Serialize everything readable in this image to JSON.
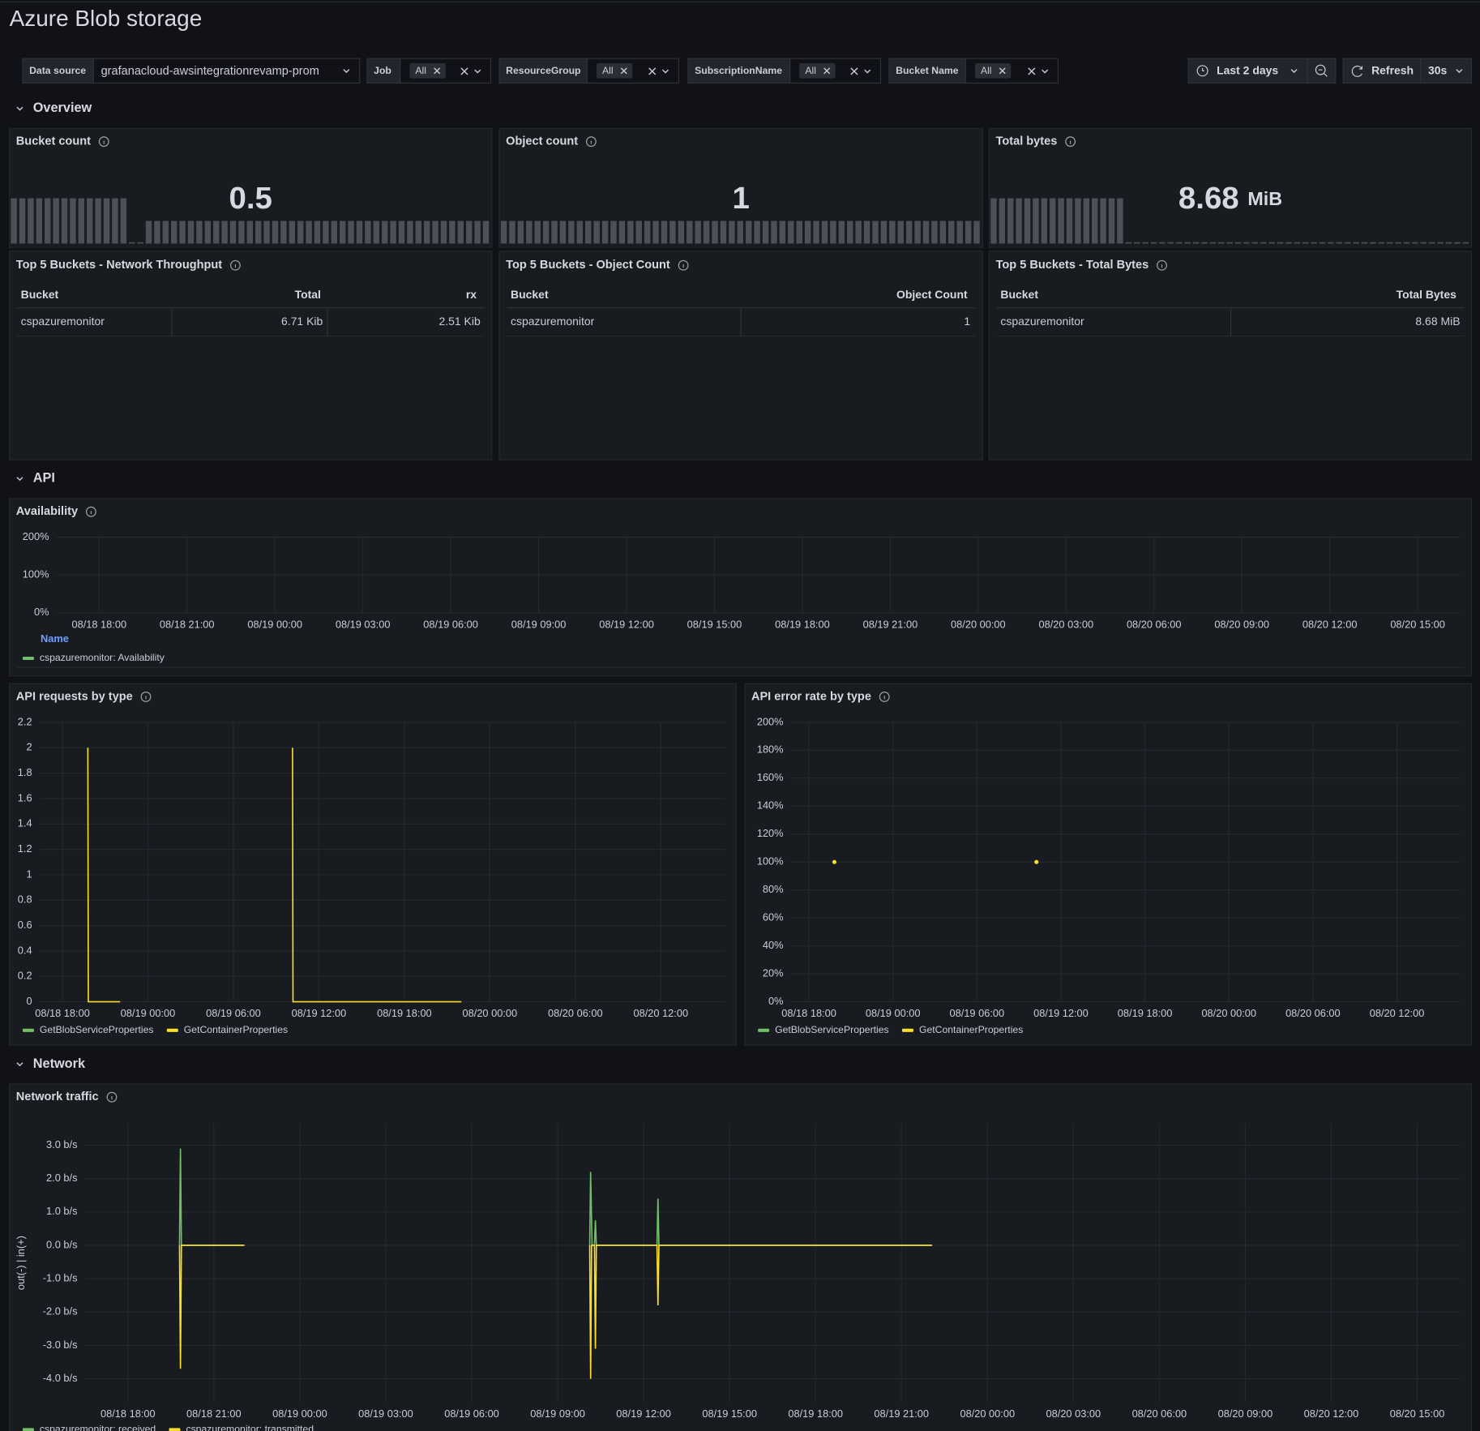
{
  "header": {
    "title": "Azure Blob storage"
  },
  "toolbar": {
    "variables": [
      {
        "label": "Data source",
        "value": "grafanacloud-awsintegrationrevamp-prom"
      },
      {
        "label": "Job",
        "value": "All"
      },
      {
        "label": "ResourceGroup",
        "value": "All"
      },
      {
        "label": "SubscriptionName",
        "value": "All"
      },
      {
        "label": "Bucket Name",
        "value": "All"
      }
    ],
    "time_range": "Last 2 days",
    "refresh": "Refresh",
    "interval": "30s"
  },
  "rows": [
    "Overview",
    "API",
    "Network"
  ],
  "stats": [
    {
      "title": "Bucket count",
      "value": 0.5,
      "sparkline": {
        "ylim": [
          0,
          1
        ],
        "values": [
          1,
          1,
          1,
          1,
          1,
          1,
          1,
          1,
          1,
          1,
          1,
          1,
          1,
          1,
          0,
          0,
          0.5,
          0.5,
          0.5,
          0.5,
          0.5,
          0.5,
          0.5,
          0.5,
          0.5,
          0.5,
          0.5,
          0.5,
          0.5,
          0.5,
          0.5,
          0.5,
          0.5,
          0.5,
          0.5,
          0.5,
          0.5,
          0.5,
          0.5,
          0.5,
          0.5,
          0.5,
          0.5,
          0.5,
          0.5,
          0.5,
          0.5,
          0.5,
          0.5,
          0.5,
          0.5,
          0.5,
          0.5,
          0.5,
          0.5,
          0.5,
          0.5
        ]
      }
    },
    {
      "title": "Object count",
      "value": 1,
      "sparkline": {
        "ylim": [
          0,
          2
        ],
        "values": [
          1,
          1,
          1,
          1,
          1,
          1,
          1,
          1,
          1,
          1,
          1,
          1,
          1,
          1,
          1,
          1,
          1,
          1,
          1,
          1,
          1,
          1,
          1,
          1,
          1,
          1,
          1,
          1,
          1,
          1,
          1,
          1,
          1,
          1,
          1,
          1,
          1,
          1,
          1,
          1,
          1,
          1,
          1,
          1,
          1,
          1,
          1,
          1,
          1,
          1,
          1,
          1,
          1,
          1,
          1,
          1,
          1
        ]
      }
    },
    {
      "title": "Total bytes",
      "value": 8.68,
      "unit": "MiB",
      "sparkline": {
        "ylim": [
          0,
          8.68
        ],
        "values": [
          8.68,
          8.68,
          8.68,
          8.68,
          8.68,
          8.68,
          8.68,
          8.68,
          8.68,
          8.68,
          8.68,
          8.68,
          8.68,
          8.68,
          8.68,
          8.68,
          0,
          0,
          0,
          0,
          0,
          0,
          0,
          0,
          0,
          0,
          0,
          0,
          0,
          0,
          0,
          0,
          0,
          0,
          0,
          0,
          0,
          0,
          0,
          0,
          0,
          0,
          0,
          0,
          0,
          0,
          0,
          0,
          0,
          0,
          0,
          0,
          0,
          0,
          0,
          0,
          0
        ]
      }
    }
  ],
  "tables": [
    {
      "title": "Top 5 Buckets - Network Throughput",
      "columns": [
        "Bucket",
        "Total",
        "rx"
      ],
      "rows": [
        [
          "cspazuremonitor",
          "6.71 Kib",
          "2.51 Kib"
        ]
      ]
    },
    {
      "title": "Top 5 Buckets - Object Count",
      "columns": [
        "Bucket",
        "Object Count"
      ],
      "rows": [
        [
          "cspazuremonitor",
          "1"
        ]
      ]
    },
    {
      "title": "Top 5 Buckets - Total Bytes",
      "columns": [
        "Bucket",
        "Total Bytes"
      ],
      "rows": [
        [
          "cspazuremonitor",
          "8.68 MiB"
        ]
      ]
    }
  ],
  "panels": {
    "availability": {
      "type": "line",
      "title": "Availability",
      "legend_header": "Name",
      "xlim": [
        "08/18 16:33",
        "08/20 16:27"
      ],
      "ylim": [
        0,
        200
      ],
      "yticks": [
        {
          "value": 0,
          "label": "0%"
        },
        {
          "value": 100,
          "label": "100%"
        },
        {
          "value": 200,
          "label": "200%"
        }
      ],
      "xticks": [
        "08/18 18:00",
        "08/18 21:00",
        "08/19 00:00",
        "08/19 03:00",
        "08/19 06:00",
        "08/19 09:00",
        "08/19 12:00",
        "08/19 15:00",
        "08/19 18:00",
        "08/19 21:00",
        "08/20 00:00",
        "08/20 03:00",
        "08/20 06:00",
        "08/20 09:00",
        "08/20 12:00",
        "08/20 15:00"
      ],
      "series": [
        {
          "name": "cspazuremonitor: Availability",
          "color": "#73bf69",
          "x": [],
          "values": []
        }
      ]
    },
    "api_requests": {
      "type": "line",
      "title": "API requests by type",
      "xlim": [
        "08/18 16:24",
        "08/20 16:30"
      ],
      "ylim": [
        0,
        2.2
      ],
      "yticks": [
        0,
        0.2,
        0.4,
        0.6,
        0.8,
        1,
        1.2,
        1.4,
        1.6,
        1.8,
        2,
        2.2
      ],
      "xticks": [
        "08/18 18:00",
        "08/19 00:00",
        "08/19 06:00",
        "08/19 12:00",
        "08/19 18:00",
        "08/20 00:00",
        "08/20 06:00",
        "08/20 12:00"
      ],
      "series": [
        {
          "name": "GetBlobServiceProperties",
          "color": "#73bf69",
          "x": [],
          "values": []
        },
        {
          "name": "GetContainerProperties",
          "color": "#fade2a",
          "x": [
            "08/18 19:47",
            "08/18 19:49",
            "08/18 22:03",
            null,
            "08/19 10:09",
            "08/19 10:11",
            "08/19 22:00"
          ],
          "values": [
            2,
            0,
            0,
            null,
            2,
            0,
            0
          ]
        }
      ]
    },
    "api_error_rate": {
      "type": "points",
      "title": "API error rate by type",
      "xlim": [
        "08/18 16:43",
        "08/20 16:31"
      ],
      "ylim": [
        0,
        200
      ],
      "yticks": [
        {
          "value": 0,
          "label": "0%"
        },
        {
          "value": 20,
          "label": "20%"
        },
        {
          "value": 40,
          "label": "40%"
        },
        {
          "value": 60,
          "label": "60%"
        },
        {
          "value": 80,
          "label": "80%"
        },
        {
          "value": 100,
          "label": "100%"
        },
        {
          "value": 120,
          "label": "120%"
        },
        {
          "value": 140,
          "label": "140%"
        },
        {
          "value": 160,
          "label": "160%"
        },
        {
          "value": 180,
          "label": "180%"
        },
        {
          "value": 200,
          "label": "200%"
        }
      ],
      "xticks": [
        "08/18 18:00",
        "08/19 00:00",
        "08/19 06:00",
        "08/19 12:00",
        "08/19 18:00",
        "08/20 00:00",
        "08/20 06:00",
        "08/20 12:00"
      ],
      "series": [
        {
          "name": "GetBlobServiceProperties",
          "color": "#73bf69",
          "x": [],
          "values": []
        },
        {
          "name": "GetContainerProperties",
          "color": "#fade2a",
          "x": [
            "08/18 19:49",
            "08/19 10:15"
          ],
          "values": [
            100,
            100
          ]
        }
      ]
    },
    "network_traffic": {
      "type": "line",
      "title": "Network traffic",
      "y_label": "out(-) | in(+)",
      "xlim": [
        "08/18 16:30",
        "08/20 16:30"
      ],
      "ylim": [
        -4.7,
        3.65
      ],
      "yticks": [
        {
          "value": -4,
          "label": "-4.0 b/s"
        },
        {
          "value": -3,
          "label": "-3.0 b/s"
        },
        {
          "value": -2,
          "label": "-2.0 b/s"
        },
        {
          "value": -1,
          "label": "-1.0 b/s"
        },
        {
          "value": 0,
          "label": "0.0 b/s"
        },
        {
          "value": 1,
          "label": "1.0 b/s"
        },
        {
          "value": 2,
          "label": "2.0 b/s"
        },
        {
          "value": 3,
          "label": "3.0 b/s"
        }
      ],
      "xticks": [
        "08/18 18:00",
        "08/18 21:00",
        "08/19 00:00",
        "08/19 03:00",
        "08/19 06:00",
        "08/19 09:00",
        "08/19 12:00",
        "08/19 15:00",
        "08/19 18:00",
        "08/19 21:00",
        "08/20 00:00",
        "08/20 03:00",
        "08/20 06:00",
        "08/20 09:00",
        "08/20 12:00",
        "08/20 15:00"
      ],
      "series": [
        {
          "name": "cspazuremonitor: received",
          "color": "#73bf69",
          "x": [
            "08/18 19:48",
            "08/18 19:50",
            "08/18 19:52",
            "08/18 22:04",
            null,
            "08/19 10:07",
            "08/19 10:09",
            "08/19 10:12",
            "08/19 10:17",
            "08/19 10:19",
            "08/19 10:21",
            "08/19 12:28",
            "08/19 12:30",
            "08/19 12:32",
            "08/19 22:04"
          ],
          "values": [
            0,
            2.9,
            0,
            0,
            null,
            0,
            2.2,
            0,
            0,
            0.75,
            0,
            0,
            1.4,
            0,
            0
          ]
        },
        {
          "name": "cspazuremonitor: transmitted",
          "color": "#fade2a",
          "x": [
            "08/18 19:48",
            "08/18 19:50",
            "08/18 19:52",
            "08/18 22:04",
            null,
            "08/19 10:07",
            "08/19 10:09",
            "08/19 10:11",
            "08/19 10:17",
            "08/19 10:19",
            "08/19 10:21",
            "08/19 12:28",
            "08/19 12:30",
            "08/19 12:32",
            "08/19 22:04"
          ],
          "values": [
            0,
            -3.7,
            0,
            0,
            null,
            0,
            -4,
            0,
            0,
            -3.1,
            0,
            0,
            -1.8,
            0,
            0
          ]
        }
      ]
    }
  }
}
